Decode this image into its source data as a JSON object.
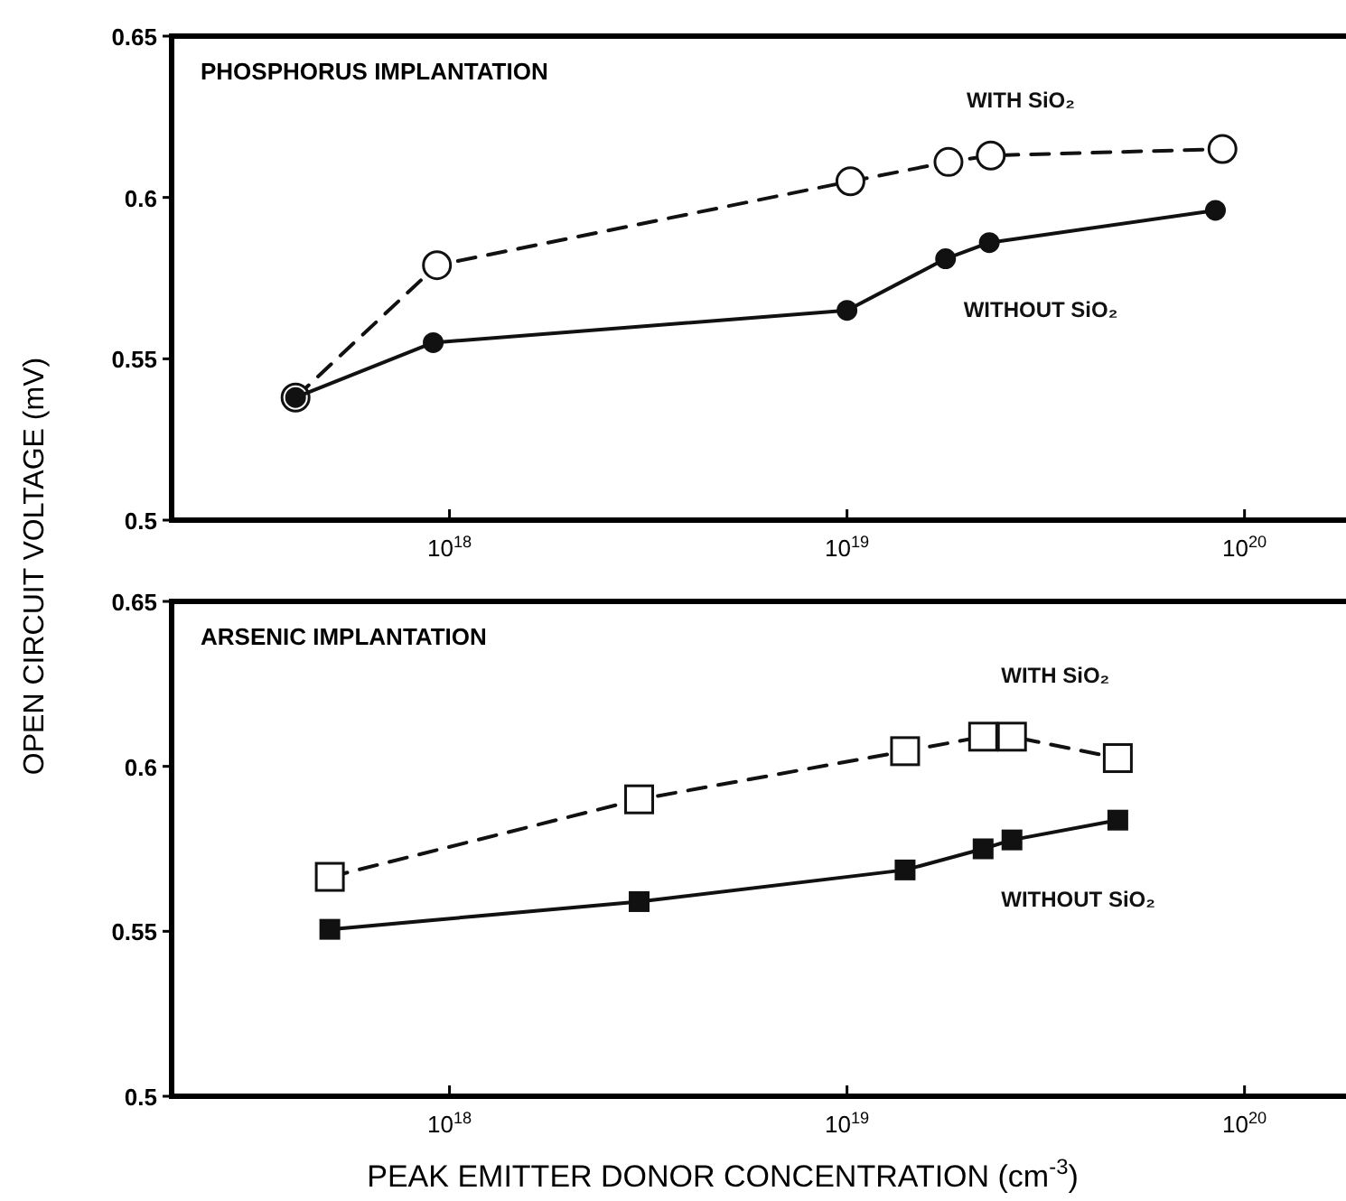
{
  "chart_data": [
    {
      "type": "line",
      "ylabel": "OPEN CIRCUIT VOLTAGE (mV)",
      "annotations": [
        "PHOSPHORUS IMPLANTATION"
      ],
      "log": "x",
      "xlim": [
        2e+17,
        1.8e+20
      ],
      "xticks": [
        {
          "value": 1e+18,
          "label": "10$^{18}$"
        },
        {
          "value": 1e+19,
          "label": "10$^{19}$"
        },
        {
          "value": 1e+20,
          "label": "10$^{20}$"
        }
      ],
      "ylim": [
        0.5,
        0.65
      ],
      "yticks": [
        0.5,
        0.55,
        0.6,
        0.65
      ],
      "grid": false,
      "series": [
        {
          "name": "WITH SiO₂",
          "color": "#111111",
          "marker": "circle",
          "line_style": "dashed",
          "x": [
            4.1e+17,
            9.3e+17,
            1.02e+19,
            1.8e+19,
            2.3e+19,
            8.8e+19
          ],
          "values": [
            0.538,
            0.579,
            0.605,
            0.611,
            0.613,
            0.615
          ]
        },
        {
          "name": "WITHOUT SiO₂",
          "color": "#111111",
          "marker": "circle",
          "line_style": "solid",
          "x": [
            4.1e+17,
            9.1e+17,
            1e+19,
            1.77e+19,
            2.28e+19,
            8.45e+19
          ],
          "values": [
            0.538,
            0.555,
            0.565,
            0.581,
            0.586,
            0.596
          ]
        }
      ]
    },
    {
      "type": "line",
      "xlabel": "PEAK EMITTER DONOR CONCENTRATION (cm$^{-3}$)",
      "annotations": [
        "ARSENIC IMPLANTATION"
      ],
      "log": "x",
      "xlim": [
        2e+17,
        1.8e+20
      ],
      "xticks": [
        {
          "value": 1e+18,
          "label": "10$^{18}$"
        },
        {
          "value": 1e+19,
          "label": "10$^{19}$"
        },
        {
          "value": 1e+20,
          "label": "10$^{20}$"
        }
      ],
      "ylim": [
        0.5,
        0.65
      ],
      "yticks": [
        0.5,
        0.55,
        0.6,
        0.65
      ],
      "grid": false,
      "series": [
        {
          "name": "WITH SiO₂",
          "color": "#111111",
          "marker": "square",
          "line_style": "dashed",
          "x": [
            5e+17,
            3e+18,
            1.4e+19,
            2.2e+19,
            2.6e+19,
            4.8e+19
          ],
          "values": [
            0.5665,
            0.59,
            0.6046,
            0.609,
            0.609,
            0.6025
          ]
        },
        {
          "name": "WITHOUT SiO₂",
          "color": "#111111",
          "marker": "square",
          "line_style": "solid",
          "x": [
            5e+17,
            3e+18,
            1.4e+19,
            2.2e+19,
            2.6e+19,
            4.8e+19
          ],
          "values": [
            0.5506,
            0.559,
            0.5686,
            0.575,
            0.5777,
            0.5837
          ]
        }
      ]
    }
  ]
}
